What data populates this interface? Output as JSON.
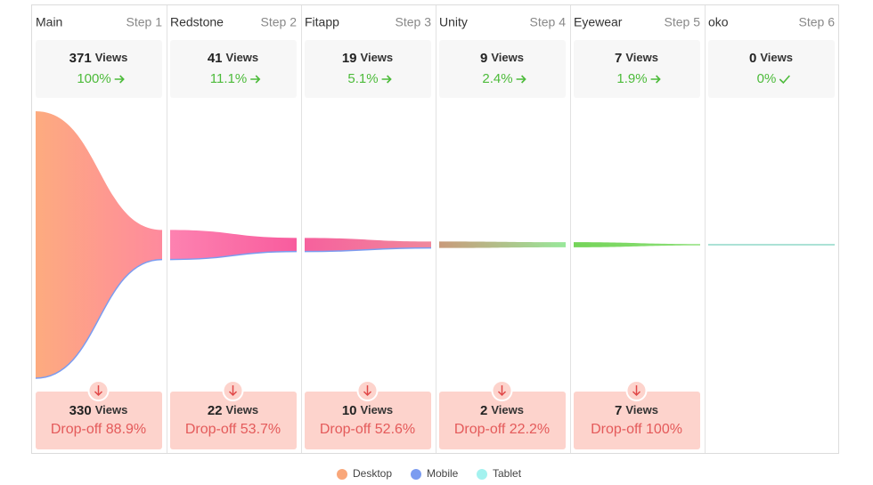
{
  "chart_data": {
    "type": "funnel",
    "categories": [
      "Main",
      "Redstone",
      "Fitapp",
      "Unity",
      "Eyewear",
      "oko"
    ],
    "steps": [
      "Step 1",
      "Step 2",
      "Step 3",
      "Step 4",
      "Step 5",
      "Step 6"
    ],
    "unit": "Views",
    "views": [
      371,
      41,
      19,
      9,
      7,
      0
    ],
    "conversion": [
      100,
      11.1,
      5.1,
      2.4,
      1.9,
      0
    ],
    "conversion_labels": [
      "100%",
      "11.1%",
      "5.1%",
      "2.4%",
      "1.9%",
      "0%"
    ],
    "dropoff_views": [
      330,
      22,
      10,
      2,
      7
    ],
    "dropoff": [
      88.9,
      53.7,
      52.6,
      22.2,
      100
    ],
    "dropoff_labels": [
      "Drop-off 88.9%",
      "Drop-off 53.7%",
      "Drop-off 52.6%",
      "Drop-off 22.2%",
      "Drop-off 100%"
    ],
    "flow_colors": [
      [
        "#fdab7f",
        "#fe8a9d"
      ],
      [
        "#fd82b0",
        "#f85c9e"
      ],
      [
        "#f6619d",
        "#f0889c"
      ],
      [
        "#c99a7a",
        "#98e89a"
      ],
      [
        "#74d458",
        "#8ee07a"
      ],
      [
        "#8fd8c8",
        "#8fd8c8"
      ]
    ],
    "series": [
      {
        "name": "Desktop",
        "color": "#f9a77a"
      },
      {
        "name": "Mobile",
        "color": "#7b9cf0"
      },
      {
        "name": "Tablet",
        "color": "#a4f2ef"
      }
    ]
  }
}
